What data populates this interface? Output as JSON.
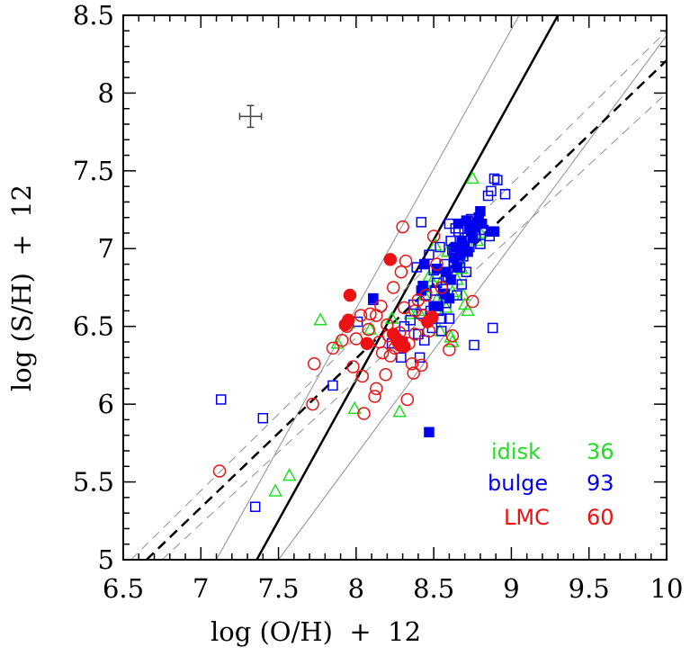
{
  "chart_data": {
    "type": "scatter",
    "xlabel": "log (O/H)  +  12",
    "ylabel": "log (S/H)  +  12",
    "xlim": [
      6.5,
      10
    ],
    "ylim": [
      5,
      8.5
    ],
    "x_ticks": [
      "6.5",
      "7",
      "7.5",
      "8",
      "8.5",
      "9",
      "9.5",
      "10"
    ],
    "y_ticks": [
      "5",
      "5.5",
      "6",
      "6.5",
      "7",
      "7.5",
      "8",
      "8.5"
    ],
    "grid": false,
    "error_bar": {
      "x": 7.32,
      "y": 7.85,
      "dx": 0.07,
      "dy": 0.07
    },
    "lines": [
      {
        "style": "solid-thick",
        "color": "#000000",
        "x0": 7.36,
        "y0": 5.0,
        "x1": 9.3,
        "y1": 8.5
      },
      {
        "style": "solid-thin",
        "color": "#999999",
        "x0": 7.1,
        "y0": 5.0,
        "x1": 9.05,
        "y1": 8.5
      },
      {
        "style": "solid-thin",
        "color": "#999999",
        "x0": 7.5,
        "y0": 5.0,
        "x1": 10.0,
        "y1": 8.37
      },
      {
        "style": "dashed-thick",
        "color": "#000000",
        "x0": 6.65,
        "y0": 5.0,
        "x1": 10.0,
        "y1": 8.21
      },
      {
        "style": "dashed-thin",
        "color": "#999999",
        "x0": 6.55,
        "y0": 5.0,
        "x1": 10.0,
        "y1": 8.4
      },
      {
        "style": "dashed-thin",
        "color": "#999999",
        "x0": 6.75,
        "y0": 5.0,
        "x1": 10.0,
        "y1": 8.0
      }
    ],
    "series": [
      {
        "name": "idisk",
        "count": "36",
        "color": "#22dd22",
        "marker": "triangle-open",
        "points": [
          [
            7.48,
            5.44
          ],
          [
            7.57,
            5.54
          ],
          [
            7.77,
            6.54
          ],
          [
            7.88,
            6.39
          ],
          [
            7.95,
            6.52
          ],
          [
            7.99,
            5.97
          ],
          [
            8.09,
            6.48
          ],
          [
            8.23,
            6.55
          ],
          [
            8.28,
            5.95
          ],
          [
            8.35,
            6.58
          ],
          [
            8.4,
            6.6
          ],
          [
            8.45,
            6.75
          ],
          [
            8.47,
            6.82
          ],
          [
            8.49,
            6.79
          ],
          [
            8.52,
            6.67
          ],
          [
            8.54,
            6.47
          ],
          [
            8.56,
            6.81
          ],
          [
            8.57,
            6.7
          ],
          [
            8.58,
            6.62
          ],
          [
            8.61,
            6.43
          ],
          [
            8.62,
            6.4
          ],
          [
            8.62,
            6.72
          ],
          [
            8.65,
            6.8
          ],
          [
            8.66,
            6.93
          ],
          [
            8.67,
            6.97
          ],
          [
            8.68,
            6.87
          ],
          [
            8.69,
            6.7
          ],
          [
            8.7,
            6.64
          ],
          [
            8.72,
            6.6
          ],
          [
            8.75,
            7.45
          ],
          [
            8.76,
            7.09
          ],
          [
            8.78,
            7.05
          ],
          [
            8.8,
            7.1
          ],
          [
            8.51,
            7.02
          ],
          [
            8.59,
            6.98
          ],
          [
            8.44,
            6.7
          ]
        ]
      },
      {
        "name": "bulge",
        "count": "93",
        "color": "#0000ee",
        "marker": "square",
        "points_open": [
          [
            7.13,
            6.03
          ],
          [
            7.35,
            5.34
          ],
          [
            7.4,
            5.91
          ],
          [
            7.85,
            6.12
          ],
          [
            8.01,
            6.53
          ],
          [
            8.11,
            6.67
          ],
          [
            8.23,
            6.39
          ],
          [
            8.29,
            6.3
          ],
          [
            8.31,
            6.5
          ],
          [
            8.35,
            6.54
          ],
          [
            8.37,
            6.64
          ],
          [
            8.39,
            6.88
          ],
          [
            8.4,
            6.45
          ],
          [
            8.41,
            6.3
          ],
          [
            8.42,
            6.58
          ],
          [
            8.42,
            7.17
          ],
          [
            8.44,
            6.41
          ],
          [
            8.45,
            6.7
          ],
          [
            8.47,
            6.96
          ],
          [
            8.48,
            6.6
          ],
          [
            8.49,
            6.49
          ],
          [
            8.5,
            6.86
          ],
          [
            8.51,
            6.73
          ],
          [
            8.52,
            6.78
          ],
          [
            8.53,
            6.6
          ],
          [
            8.54,
            7.01
          ],
          [
            8.55,
            6.47
          ],
          [
            8.56,
            6.74
          ],
          [
            8.57,
            6.9
          ],
          [
            8.58,
            6.65
          ],
          [
            8.59,
            6.82
          ],
          [
            8.6,
            6.55
          ],
          [
            8.6,
            7.16
          ],
          [
            8.61,
            7.05
          ],
          [
            8.62,
            6.99
          ],
          [
            8.63,
            6.92
          ],
          [
            8.64,
            7.13
          ],
          [
            8.65,
            6.7
          ],
          [
            8.66,
            7.11
          ],
          [
            8.67,
            6.88
          ],
          [
            8.68,
            6.77
          ],
          [
            8.69,
            6.95
          ],
          [
            8.7,
            7.07
          ],
          [
            8.71,
            6.85
          ],
          [
            8.72,
            7.18
          ],
          [
            8.73,
            7.01
          ],
          [
            8.74,
            7.19
          ],
          [
            8.75,
            7.15
          ],
          [
            8.76,
            6.38
          ],
          [
            8.77,
            7.08
          ],
          [
            8.8,
            7.03
          ],
          [
            8.82,
            7.12
          ],
          [
            8.85,
            7.34
          ],
          [
            8.87,
            7.37
          ],
          [
            8.88,
            6.49
          ],
          [
            8.89,
            7.45
          ],
          [
            8.91,
            7.44
          ],
          [
            8.96,
            7.35
          ],
          [
            8.86,
            7.08
          ],
          [
            8.63,
            7.0
          ],
          [
            8.55,
            6.55
          ]
        ],
        "points_filled": [
          [
            8.11,
            6.68
          ],
          [
            8.3,
            6.4
          ],
          [
            8.43,
            6.76
          ],
          [
            8.44,
            6.9
          ],
          [
            8.47,
            5.82
          ],
          [
            8.52,
            6.87
          ],
          [
            8.53,
            6.63
          ],
          [
            8.57,
            6.71
          ],
          [
            8.58,
            6.85
          ],
          [
            8.6,
            6.68
          ],
          [
            8.63,
            6.94
          ],
          [
            8.64,
            7.01
          ],
          [
            8.65,
            6.88
          ],
          [
            8.66,
            7.16
          ],
          [
            8.67,
            6.96
          ],
          [
            8.68,
            7.05
          ],
          [
            8.7,
            7.02
          ],
          [
            8.71,
            7.18
          ],
          [
            8.72,
            6.98
          ],
          [
            8.74,
            7.11
          ],
          [
            8.75,
            7.07
          ],
          [
            8.77,
            7.14
          ],
          [
            8.78,
            7.17
          ],
          [
            8.79,
            7.2
          ],
          [
            8.8,
            7.24
          ],
          [
            8.81,
            7.16
          ],
          [
            8.87,
            7.11
          ],
          [
            8.89,
            7.11
          ],
          [
            8.61,
            6.8
          ],
          [
            8.73,
            7.13
          ],
          [
            8.5,
            6.63
          ],
          [
            8.42,
            6.73
          ]
        ]
      },
      {
        "name": "LMC",
        "count": "60",
        "color": "#ee1111",
        "marker": "circle",
        "points_open": [
          [
            7.12,
            5.57
          ],
          [
            7.72,
            6.0
          ],
          [
            7.73,
            6.26
          ],
          [
            7.85,
            6.36
          ],
          [
            7.91,
            6.41
          ],
          [
            7.94,
            6.5
          ],
          [
            7.98,
            6.24
          ],
          [
            8.0,
            6.42
          ],
          [
            8.03,
            6.57
          ],
          [
            8.04,
            6.18
          ],
          [
            8.05,
            5.94
          ],
          [
            8.08,
            6.48
          ],
          [
            8.09,
            6.58
          ],
          [
            8.12,
            6.05
          ],
          [
            8.13,
            6.1
          ],
          [
            8.13,
            6.57
          ],
          [
            8.15,
            6.4
          ],
          [
            8.16,
            6.63
          ],
          [
            8.17,
            6.33
          ],
          [
            8.19,
            6.19
          ],
          [
            8.2,
            6.51
          ],
          [
            8.21,
            6.44
          ],
          [
            8.22,
            6.31
          ],
          [
            8.24,
            6.75
          ],
          [
            8.25,
            6.36
          ],
          [
            8.27,
            6.4
          ],
          [
            8.28,
            6.46
          ],
          [
            8.29,
            6.85
          ],
          [
            8.3,
            7.14
          ],
          [
            8.31,
            6.62
          ],
          [
            8.32,
            6.92
          ],
          [
            8.33,
            6.03
          ],
          [
            8.34,
            6.39
          ],
          [
            8.36,
            6.26
          ],
          [
            8.37,
            6.2
          ],
          [
            8.38,
            6.45
          ],
          [
            8.4,
            6.67
          ],
          [
            8.42,
            6.25
          ],
          [
            8.43,
            6.57
          ],
          [
            8.45,
            6.7
          ],
          [
            8.47,
            6.47
          ],
          [
            8.5,
            7.08
          ],
          [
            8.52,
            6.9
          ],
          [
            8.55,
            6.75
          ],
          [
            8.6,
            6.35
          ],
          [
            8.62,
            6.44
          ],
          [
            8.75,
            6.66
          ],
          [
            8.38,
            6.6
          ]
        ],
        "points_filled": [
          [
            7.93,
            6.51
          ],
          [
            7.95,
            6.54
          ],
          [
            7.96,
            6.7
          ],
          [
            8.07,
            6.39
          ],
          [
            8.22,
            6.93
          ],
          [
            8.24,
            6.45
          ],
          [
            8.26,
            6.42
          ],
          [
            8.28,
            6.38
          ],
          [
            8.29,
            6.4
          ],
          [
            8.31,
            6.37
          ],
          [
            8.46,
            6.53
          ],
          [
            8.49,
            6.56
          ]
        ]
      }
    ]
  }
}
